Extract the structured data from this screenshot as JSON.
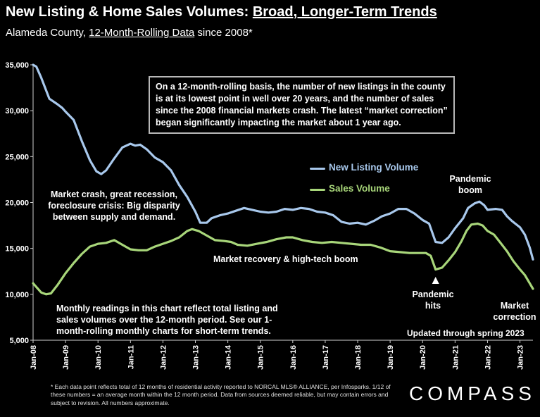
{
  "header": {
    "title_part1": "New Listing & Home Sales Volumes: ",
    "title_part2": "Broad, Longer-Term Trends",
    "subtitle_part1": "Alameda County, ",
    "subtitle_part2": "12-Month-Rolling Data",
    "subtitle_part3": " since 2008*"
  },
  "callout": "On a 12-month-rolling basis, the number of new listings in the county is at its lowest point in well over 20 years, and the number of sales since the 2008 financial markets crash. The latest “market correction” began significantly impacting the market about 1 year ago.",
  "annotations": {
    "crash": "Market crash,  great recession, foreclosure crisis: Big disparity between supply and demand.",
    "recovery": "Market recovery & high-tech boom",
    "pandemic_boom_1": "Pandemic",
    "pandemic_boom_2": "boom",
    "pandemic_hits_1": "Pandemic",
    "pandemic_hits_2": "hits",
    "correction_1": "Market",
    "correction_2": "correction",
    "readings": "Monthly readings in this chart reflect total listing and sales volumes over the 12-month period. See our 1-month-rolling monthly charts for short-term trends.",
    "updated": "Updated through spring 2023"
  },
  "footnote": "* Each data point reflects total of 12 months of residential activity reported to NORCAL MLS® ALLIANCE, per Infosparks. 1/12 of these numbers = an average month within the 12 month period. Data from sources deemed reliable, but may contain errors and subject to revision. All numbers approximate.",
  "brand": "COMPASS",
  "colors": {
    "new_listing": "#a8c8ec",
    "sales": "#a8d67a",
    "background": "#000000"
  },
  "chart_data": {
    "type": "line",
    "x_ticks": [
      "Jan-08",
      "Jan-09",
      "Jan-10",
      "Jan-11",
      "Jan-12",
      "Jan-13",
      "Jan-14",
      "Jan-15",
      "Jan-16",
      "Jan-17",
      "Jan-18",
      "Jan-19",
      "Jan-20",
      "Jan-21",
      "Jan-22",
      "Jan-23"
    ],
    "y_ticks": [
      "5,000",
      "10,000",
      "15,000",
      "20,000",
      "25,000",
      "30,000",
      "35,000"
    ],
    "ylim": [
      5000,
      35000
    ],
    "xlim": [
      2008.0,
      2023.4
    ],
    "grid": false,
    "series": [
      {
        "name": "New Listing Volume",
        "color": "#a8c8ec",
        "points": [
          [
            2008.0,
            35000
          ],
          [
            2008.1,
            34800
          ],
          [
            2008.25,
            33600
          ],
          [
            2008.5,
            31300
          ],
          [
            2008.75,
            30700
          ],
          [
            2008.9,
            30300
          ],
          [
            2009.0,
            29900
          ],
          [
            2009.25,
            29000
          ],
          [
            2009.5,
            26700
          ],
          [
            2009.75,
            24600
          ],
          [
            2009.95,
            23400
          ],
          [
            2010.1,
            23100
          ],
          [
            2010.25,
            23500
          ],
          [
            2010.5,
            24800
          ],
          [
            2010.75,
            26000
          ],
          [
            2011.0,
            26400
          ],
          [
            2011.15,
            26200
          ],
          [
            2011.3,
            26300
          ],
          [
            2011.5,
            25800
          ],
          [
            2011.75,
            24900
          ],
          [
            2012.0,
            24400
          ],
          [
            2012.25,
            23500
          ],
          [
            2012.5,
            21900
          ],
          [
            2012.75,
            20600
          ],
          [
            2013.0,
            19000
          ],
          [
            2013.15,
            17800
          ],
          [
            2013.35,
            17800
          ],
          [
            2013.5,
            18300
          ],
          [
            2013.75,
            18600
          ],
          [
            2014.0,
            18800
          ],
          [
            2014.25,
            19100
          ],
          [
            2014.5,
            19400
          ],
          [
            2014.75,
            19200
          ],
          [
            2015.0,
            19000
          ],
          [
            2015.25,
            18900
          ],
          [
            2015.5,
            19000
          ],
          [
            2015.75,
            19300
          ],
          [
            2016.0,
            19200
          ],
          [
            2016.25,
            19400
          ],
          [
            2016.5,
            19300
          ],
          [
            2016.75,
            19000
          ],
          [
            2017.0,
            18900
          ],
          [
            2017.25,
            18600
          ],
          [
            2017.5,
            17900
          ],
          [
            2017.75,
            17700
          ],
          [
            2018.0,
            17800
          ],
          [
            2018.25,
            17600
          ],
          [
            2018.5,
            18000
          ],
          [
            2018.75,
            18500
          ],
          [
            2019.0,
            18800
          ],
          [
            2019.25,
            19300
          ],
          [
            2019.5,
            19300
          ],
          [
            2019.75,
            18800
          ],
          [
            2020.0,
            18100
          ],
          [
            2020.2,
            17700
          ],
          [
            2020.4,
            15700
          ],
          [
            2020.6,
            15600
          ],
          [
            2020.8,
            16200
          ],
          [
            2021.0,
            17200
          ],
          [
            2021.25,
            18300
          ],
          [
            2021.4,
            19400
          ],
          [
            2021.6,
            19900
          ],
          [
            2021.75,
            20100
          ],
          [
            2021.9,
            19700
          ],
          [
            2022.0,
            19200
          ],
          [
            2022.25,
            19300
          ],
          [
            2022.45,
            19200
          ],
          [
            2022.6,
            18500
          ],
          [
            2022.75,
            18000
          ],
          [
            2023.0,
            17300
          ],
          [
            2023.15,
            16500
          ],
          [
            2023.3,
            15100
          ],
          [
            2023.4,
            13800
          ]
        ]
      },
      {
        "name": "Sales Volume",
        "color": "#a8d67a",
        "points": [
          [
            2008.0,
            11200
          ],
          [
            2008.1,
            10800
          ],
          [
            2008.25,
            10200
          ],
          [
            2008.4,
            10000
          ],
          [
            2008.55,
            10100
          ],
          [
            2008.75,
            11000
          ],
          [
            2009.0,
            12300
          ],
          [
            2009.25,
            13400
          ],
          [
            2009.5,
            14400
          ],
          [
            2009.75,
            15200
          ],
          [
            2010.0,
            15500
          ],
          [
            2010.25,
            15600
          ],
          [
            2010.5,
            15900
          ],
          [
            2010.75,
            15400
          ],
          [
            2011.0,
            14900
          ],
          [
            2011.25,
            14800
          ],
          [
            2011.5,
            14800
          ],
          [
            2011.75,
            15200
          ],
          [
            2012.0,
            15500
          ],
          [
            2012.25,
            15800
          ],
          [
            2012.5,
            16200
          ],
          [
            2012.75,
            16900
          ],
          [
            2012.9,
            17100
          ],
          [
            2013.1,
            16900
          ],
          [
            2013.35,
            16400
          ],
          [
            2013.6,
            15900
          ],
          [
            2013.9,
            15800
          ],
          [
            2014.1,
            15700
          ],
          [
            2014.3,
            15400
          ],
          [
            2014.6,
            15300
          ],
          [
            2014.9,
            15500
          ],
          [
            2015.2,
            15700
          ],
          [
            2015.5,
            16000
          ],
          [
            2015.8,
            16200
          ],
          [
            2016.0,
            16200
          ],
          [
            2016.3,
            15900
          ],
          [
            2016.6,
            15700
          ],
          [
            2016.9,
            15600
          ],
          [
            2017.2,
            15700
          ],
          [
            2017.5,
            15600
          ],
          [
            2017.8,
            15500
          ],
          [
            2018.1,
            15400
          ],
          [
            2018.4,
            15400
          ],
          [
            2018.7,
            15100
          ],
          [
            2019.0,
            14700
          ],
          [
            2019.3,
            14600
          ],
          [
            2019.6,
            14500
          ],
          [
            2019.9,
            14500
          ],
          [
            2020.1,
            14500
          ],
          [
            2020.25,
            14200
          ],
          [
            2020.4,
            12700
          ],
          [
            2020.6,
            12900
          ],
          [
            2020.8,
            13700
          ],
          [
            2021.0,
            14600
          ],
          [
            2021.2,
            15800
          ],
          [
            2021.35,
            16900
          ],
          [
            2021.5,
            17600
          ],
          [
            2021.7,
            17700
          ],
          [
            2021.85,
            17500
          ],
          [
            2022.0,
            16900
          ],
          [
            2022.2,
            16500
          ],
          [
            2022.4,
            15600
          ],
          [
            2022.6,
            14700
          ],
          [
            2022.8,
            13600
          ],
          [
            2023.0,
            12700
          ],
          [
            2023.15,
            12100
          ],
          [
            2023.3,
            11200
          ],
          [
            2023.4,
            10600
          ]
        ]
      }
    ]
  }
}
